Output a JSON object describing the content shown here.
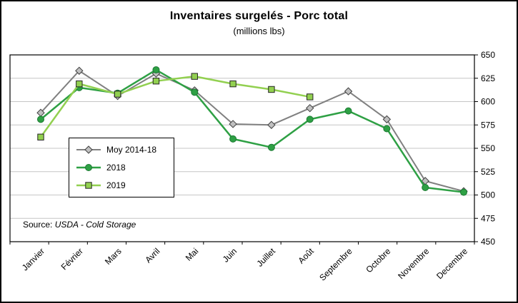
{
  "chart_data": {
    "type": "line",
    "title": "Inventaires surgelés - Porc total",
    "subtitle": "(millions lbs)",
    "categories": [
      "Janvier",
      "Février",
      "Mars",
      "Avril",
      "Mai",
      "Juin",
      "Juillet",
      "Août",
      "Septembre",
      "Octobre",
      "Novembre",
      "Decembre"
    ],
    "y_axis": {
      "min": 450,
      "max": 650,
      "step": 25,
      "side": "right"
    },
    "grid": true,
    "legend_position": "inside-top-left",
    "series": [
      {
        "name": "Moy 2014-18",
        "color": "#808080",
        "line_width": 2,
        "marker": "diamond",
        "marker_fill": "#C0C0C0",
        "marker_stroke": "#404040",
        "values": [
          588,
          633,
          606,
          630,
          612,
          576,
          575,
          593,
          611,
          581,
          515,
          504
        ]
      },
      {
        "name": "2018",
        "color": "#2EA044",
        "line_width": 2.5,
        "marker": "circle",
        "marker_fill": "#2EA044",
        "marker_stroke": "#1C7A33",
        "values": [
          581,
          615,
          609,
          634,
          610,
          560,
          551,
          581,
          590,
          571,
          508,
          503
        ]
      },
      {
        "name": "2019",
        "color": "#92D050",
        "line_width": 2.5,
        "marker": "square",
        "marker_fill": "#92D050",
        "marker_stroke": "#262626",
        "values": [
          562,
          619,
          608,
          622,
          627,
          619,
          613,
          605,
          null,
          null,
          null,
          null
        ]
      }
    ]
  },
  "source": {
    "prefix": "Source:",
    "text": "USDA - Cold Storage"
  }
}
